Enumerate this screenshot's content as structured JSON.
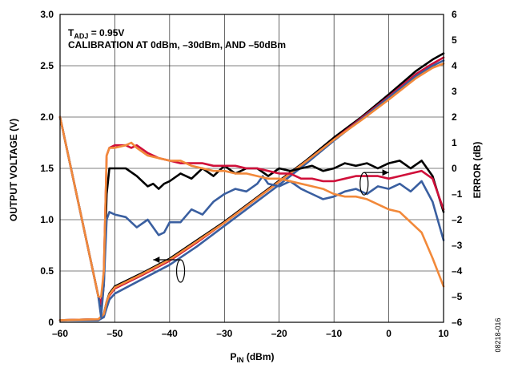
{
  "chart_data": {
    "type": "line",
    "annotations": {
      "line1_main": "T",
      "line1_sub": "ADJ",
      "line1_rest": " = 0.95V",
      "line2": "CALIBRATION AT 0dBm, –30dBm, AND –50dBm"
    },
    "xlabel": {
      "main": "P",
      "sub": "IN",
      "rest": " (dBm)"
    },
    "ylabel_left": "OUTPUT VOLTAGE (V)",
    "ylabel_right": "ERROR (dB)",
    "figure_id": "08218-016",
    "xlim": [
      -60,
      10
    ],
    "ylim_left": [
      0,
      3.0
    ],
    "ylim_right": [
      -6,
      6
    ],
    "x_ticks": [
      "–60",
      "–50",
      "–40",
      "–30",
      "–20",
      "–10",
      "0",
      "10"
    ],
    "x_tick_values": [
      -60,
      -50,
      -40,
      -30,
      -20,
      -10,
      0,
      10
    ],
    "y_left_ticks": [
      "0",
      "0.5",
      "1.0",
      "1.5",
      "2.0",
      "2.5",
      "3.0"
    ],
    "y_left_tick_values": [
      0,
      0.5,
      1.0,
      1.5,
      2.0,
      2.5,
      3.0
    ],
    "y_right_ticks": [
      "–6",
      "–5",
      "–4",
      "–3",
      "–2",
      "–1",
      "0",
      "1",
      "2",
      "3",
      "4",
      "5",
      "6"
    ],
    "y_right_tick_values": [
      -6,
      -5,
      -4,
      -3,
      -2,
      -1,
      0,
      1,
      2,
      3,
      4,
      5,
      6
    ],
    "grid": true,
    "voltage_series": [
      {
        "color": "#000000",
        "axis": "left",
        "x": [
          -60,
          -53,
          -52,
          -51.5,
          -51,
          -50,
          -45,
          -40,
          -35,
          -30,
          -25,
          -20,
          -15,
          -10,
          -5,
          0,
          5,
          8,
          10
        ],
        "y": [
          0.02,
          0.03,
          0.08,
          0.2,
          0.28,
          0.35,
          0.48,
          0.62,
          0.8,
          0.98,
          1.18,
          1.38,
          1.58,
          1.8,
          2.0,
          2.22,
          2.45,
          2.56,
          2.62
        ]
      },
      {
        "color": "#d0103a",
        "axis": "left",
        "x": [
          -60,
          -53,
          -52,
          -51.5,
          -51,
          -50,
          -45,
          -40,
          -35,
          -30,
          -25,
          -20,
          -15,
          -10,
          -5,
          0,
          5,
          8,
          10
        ],
        "y": [
          0.02,
          0.03,
          0.07,
          0.18,
          0.26,
          0.33,
          0.46,
          0.6,
          0.78,
          0.97,
          1.17,
          1.37,
          1.57,
          1.78,
          1.99,
          2.2,
          2.42,
          2.52,
          2.58
        ]
      },
      {
        "color": "#3a5fa0",
        "axis": "left",
        "x": [
          -60,
          -53,
          -52,
          -51.5,
          -51,
          -50,
          -45,
          -40,
          -35,
          -30,
          -25,
          -20,
          -15,
          -10,
          -5,
          0,
          5,
          8,
          10
        ],
        "y": [
          0.02,
          0.02,
          0.05,
          0.14,
          0.22,
          0.28,
          0.42,
          0.56,
          0.74,
          0.94,
          1.14,
          1.34,
          1.55,
          1.77,
          1.98,
          2.19,
          2.4,
          2.5,
          2.55
        ]
      },
      {
        "color": "#f2893a",
        "axis": "left",
        "x": [
          -60,
          -53,
          -52,
          -51.5,
          -51,
          -50,
          -45,
          -40,
          -35,
          -30,
          -25,
          -20,
          -15,
          -10,
          -5,
          0,
          5,
          8,
          10
        ],
        "y": [
          0.02,
          0.03,
          0.08,
          0.2,
          0.27,
          0.34,
          0.47,
          0.61,
          0.79,
          0.97,
          1.17,
          1.37,
          1.57,
          1.78,
          1.97,
          2.17,
          2.38,
          2.48,
          2.52
        ]
      }
    ],
    "error_series": [
      {
        "color": "#000000",
        "axis": "right",
        "x": [
          -60,
          -58,
          -56,
          -54,
          -53,
          -52.5,
          -52,
          -51.5,
          -51,
          -50,
          -48,
          -46,
          -44,
          -43,
          -42,
          -41,
          -40,
          -38,
          -36,
          -34,
          -32,
          -30,
          -28,
          -26,
          -24,
          -22,
          -20,
          -18,
          -16,
          -14,
          -12,
          -10,
          -8,
          -6,
          -4,
          -2,
          0,
          2,
          4,
          6,
          8,
          10
        ],
        "y": [
          2.0,
          0.0,
          -2.0,
          -4.0,
          -5.0,
          -5.6,
          -4.5,
          -1.0,
          0.0,
          0.0,
          0.0,
          -0.3,
          -0.7,
          -0.6,
          -0.8,
          -0.6,
          -0.5,
          -0.2,
          -0.4,
          0.0,
          -0.3,
          0.1,
          -0.2,
          0.0,
          0.0,
          -0.3,
          0.0,
          -0.1,
          0.0,
          0.1,
          -0.1,
          0.0,
          0.2,
          0.1,
          0.2,
          0.0,
          0.2,
          0.3,
          0.0,
          0.3,
          -0.3,
          -1.7
        ]
      },
      {
        "color": "#d0103a",
        "axis": "right",
        "x": [
          -60,
          -58,
          -56,
          -54,
          -53,
          -52.5,
          -52,
          -51.5,
          -51,
          -50,
          -48,
          -47,
          -46,
          -44,
          -42,
          -40,
          -38,
          -36,
          -34,
          -32,
          -30,
          -28,
          -26,
          -24,
          -22,
          -20,
          -18,
          -16,
          -14,
          -12,
          -10,
          -8,
          -6,
          -4,
          -2,
          0,
          2,
          4,
          6,
          8,
          10
        ],
        "y": [
          2.0,
          0.0,
          -2.0,
          -4.0,
          -5.0,
          -5.3,
          -4.0,
          0.5,
          0.8,
          0.9,
          0.9,
          0.8,
          0.9,
          0.6,
          0.4,
          0.3,
          0.2,
          0.2,
          0.2,
          0.1,
          0.1,
          0.1,
          0.0,
          0.0,
          -0.1,
          -0.2,
          -0.2,
          -0.4,
          -0.4,
          -0.5,
          -0.5,
          -0.4,
          -0.3,
          -0.3,
          -0.3,
          -0.4,
          -0.3,
          -0.2,
          -0.1,
          -0.4,
          -1.6
        ]
      },
      {
        "color": "#3a5fa0",
        "axis": "right",
        "x": [
          -60,
          -58,
          -56,
          -54,
          -53,
          -52.5,
          -52,
          -51.5,
          -51,
          -50,
          -48,
          -46,
          -44,
          -42,
          -41,
          -40,
          -38,
          -36,
          -34,
          -32,
          -30,
          -28,
          -26,
          -24,
          -23,
          -22,
          -20,
          -18,
          -16,
          -14,
          -12,
          -10,
          -8,
          -6,
          -4,
          -2,
          0,
          2,
          4,
          6,
          8,
          10
        ],
        "y": [
          2.0,
          0.0,
          -2.0,
          -4.0,
          -5.0,
          -5.8,
          -4.5,
          -2.0,
          -1.7,
          -1.8,
          -1.9,
          -2.3,
          -2.0,
          -2.6,
          -2.5,
          -2.1,
          -2.1,
          -1.6,
          -1.8,
          -1.3,
          -1.0,
          -0.8,
          -0.9,
          -0.6,
          -0.3,
          -0.6,
          -0.7,
          -0.5,
          -0.8,
          -1.0,
          -1.2,
          -1.1,
          -0.9,
          -0.8,
          -1.0,
          -0.7,
          -0.8,
          -0.6,
          -0.9,
          -0.5,
          -1.3,
          -2.8
        ]
      },
      {
        "color": "#f2893a",
        "axis": "right",
        "x": [
          -60,
          -58,
          -56,
          -54,
          -53,
          -52.5,
          -52,
          -51.5,
          -51,
          -50,
          -48,
          -47,
          -46,
          -44,
          -42,
          -40,
          -38,
          -36,
          -34,
          -32,
          -30,
          -28,
          -26,
          -24,
          -22,
          -20,
          -18,
          -16,
          -14,
          -12,
          -10,
          -8,
          -6,
          -4,
          -2,
          0,
          2,
          4,
          6,
          8,
          10
        ],
        "y": [
          2.0,
          0.0,
          -2.0,
          -4.0,
          -5.0,
          -5.0,
          -4.0,
          0.5,
          0.8,
          0.8,
          0.9,
          1.0,
          0.8,
          0.5,
          0.4,
          0.3,
          0.3,
          0.1,
          0.0,
          -0.1,
          -0.1,
          -0.2,
          -0.2,
          -0.3,
          -0.4,
          -0.4,
          -0.5,
          -0.6,
          -0.7,
          -0.8,
          -1.0,
          -1.1,
          -1.1,
          -1.2,
          -1.4,
          -1.6,
          -1.7,
          -2.1,
          -2.5,
          -3.5,
          -4.6
        ]
      }
    ],
    "markers": [
      {
        "type": "ellipse-arrow",
        "target_axis": "left",
        "direction": "left",
        "x": -38,
        "y": 0.5,
        "arrow_to_x": -43
      },
      {
        "type": "ellipse-arrow",
        "target_axis": "right",
        "direction": "right",
        "x": -4.5,
        "y": -0.6,
        "arrow_to_x": 0
      }
    ]
  }
}
